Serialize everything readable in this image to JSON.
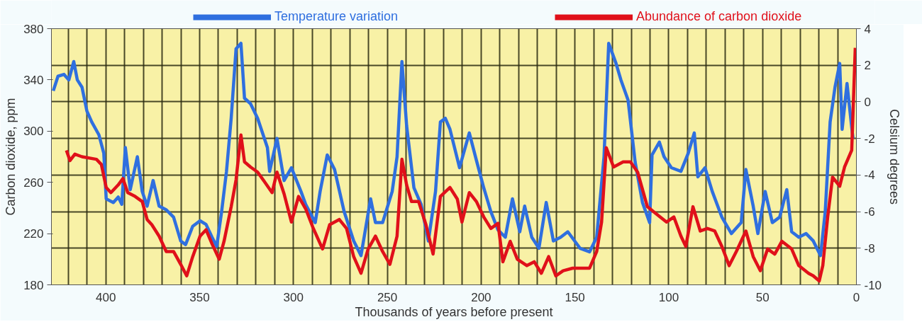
{
  "chart_data": {
    "type": "line",
    "xlabel": "Thousands of years before present",
    "ylabel": "Carbon dioxide, ppm",
    "y2label": "Celsium degrees",
    "xlim": [
      429,
      0
    ],
    "ylim": [
      180,
      380
    ],
    "y2lim": [
      -10,
      4
    ],
    "xticks": [
      {
        "value": 420,
        "label": null
      },
      {
        "value": 410,
        "label": null
      },
      400,
      {
        "value": 390,
        "label": null
      },
      {
        "value": 380,
        "label": null
      },
      {
        "value": 370,
        "label": null
      },
      {
        "value": 360,
        "label": null
      },
      350,
      {
        "value": 340,
        "label": null
      },
      {
        "value": 330,
        "label": null
      },
      {
        "value": 320,
        "label": null
      },
      {
        "value": 310,
        "label": null
      },
      300,
      {
        "value": 290,
        "label": null
      },
      {
        "value": 280,
        "label": null
      },
      {
        "value": 270,
        "label": null
      },
      {
        "value": 260,
        "label": null
      },
      250,
      {
        "value": 240,
        "label": null
      },
      {
        "value": 230,
        "label": null
      },
      {
        "value": 220,
        "label": null
      },
      {
        "value": 210,
        "label": null
      },
      200,
      {
        "value": 190,
        "label": null
      },
      {
        "value": 180,
        "label": null
      },
      {
        "value": 170,
        "label": null
      },
      {
        "value": 160,
        "label": null
      },
      150,
      {
        "value": 140,
        "label": null
      },
      {
        "value": 130,
        "label": null
      },
      {
        "value": 120,
        "label": null
      },
      {
        "value": 110,
        "label": null
      },
      100,
      {
        "value": 90,
        "label": null
      },
      {
        "value": 80,
        "label": null
      },
      {
        "value": 70,
        "label": null
      },
      {
        "value": 60,
        "label": null
      },
      50,
      {
        "value": 40,
        "label": null
      },
      {
        "value": 30,
        "label": null
      },
      {
        "value": 20,
        "label": null
      },
      {
        "value": 10,
        "label": null
      },
      0
    ],
    "yticks": [
      180,
      220,
      260,
      300,
      340,
      380
    ],
    "y2ticks": [
      -10,
      -8,
      -6,
      -4,
      -2,
      0,
      2,
      4
    ],
    "grid": true,
    "legend": "top",
    "marker": "none",
    "line_style": "solid",
    "series": [
      {
        "name": "Temperature variation",
        "color": "#2f6fdf",
        "axis": "y2",
        "x": [
          428.0,
          425.5,
          422.3,
          419.7,
          417.1,
          415.2,
          412.7,
          410.1,
          407.5,
          403.7,
          401.1,
          399.8,
          396.0,
          393.4,
          391.5,
          389.6,
          387.0,
          383.2,
          380.6,
          378.0,
          374.8,
          371.6,
          367.8,
          363.9,
          360.1,
          357.5,
          353.7,
          349.8,
          346.6,
          343.4,
          340.9,
          338.3,
          335.7,
          333.2,
          330.6,
          328.0,
          326.1,
          322.9,
          319.1,
          313.9,
          312.7,
          308.8,
          305.0,
          301.1,
          296.0,
          293.5,
          288.4,
          285.8,
          282.0,
          278.1,
          273.0,
          267.9,
          264.0,
          258.9,
          256.3,
          252.5,
          247.4,
          244.8,
          242.2,
          239.7,
          235.8,
          232.0,
          228.1,
          224.3,
          221.7,
          219.1,
          216.6,
          211.5,
          206.3,
          202.5,
          198.6,
          194.8,
          191.0,
          187.1,
          183.3,
          179.4,
          176.8,
          173.0,
          169.2,
          165.3,
          161.5,
          157.6,
          153.8,
          147.3,
          142.2,
          138.4,
          134.5,
          132.0,
          128.1,
          125.5,
          121.7,
          117.9,
          114.0,
          110.2,
          108.9,
          105.0,
          102.5,
          98.6,
          93.5,
          89.6,
          86.4,
          84.5,
          80.7,
          76.8,
          71.7,
          66.6,
          61.4,
          58.9,
          55.0,
          52.5,
          48.6,
          44.8,
          40.9,
          37.1,
          34.5,
          30.7,
          26.8,
          23.0,
          19.1,
          16.6,
          14.0,
          11.4,
          8.9,
          7.6,
          5.0,
          2.5,
          1.8
        ],
        "values": [
          0.6,
          1.4,
          1.5,
          1.2,
          2.2,
          1.2,
          0.8,
          -0.5,
          -1.1,
          -1.8,
          -2.8,
          -5.3,
          -5.5,
          -5.2,
          -5.6,
          -2.5,
          -4.8,
          -3.0,
          -4.9,
          -5.7,
          -4.3,
          -5.7,
          -5.9,
          -6.3,
          -7.6,
          -7.8,
          -6.8,
          -6.5,
          -6.7,
          -7.4,
          -7.9,
          -6.0,
          -3.8,
          -0.9,
          2.9,
          3.2,
          0.2,
          -0.1,
          -0.9,
          -2.5,
          -3.8,
          -2.0,
          -4.3,
          -3.6,
          -4.9,
          -5.6,
          -6.6,
          -4.9,
          -2.9,
          -3.7,
          -6.0,
          -7.6,
          -8.4,
          -5.3,
          -6.6,
          -6.6,
          -4.9,
          -3.0,
          2.2,
          -1.3,
          -4.7,
          -5.6,
          -7.6,
          -4.9,
          -1.1,
          -0.9,
          -1.5,
          -3.6,
          -1.7,
          -3.2,
          -4.7,
          -6.0,
          -7.0,
          -7.4,
          -5.3,
          -7.1,
          -5.7,
          -7.4,
          -8.0,
          -5.5,
          -7.6,
          -7.4,
          -7.1,
          -8.0,
          -8.2,
          -7.4,
          -3.0,
          3.2,
          2.1,
          1.2,
          0.1,
          -3.3,
          -5.5,
          -6.6,
          -2.9,
          -2.2,
          -3.0,
          -3.6,
          -3.8,
          -2.8,
          -1.7,
          -4.1,
          -3.6,
          -4.9,
          -6.3,
          -7.2,
          -6.6,
          -3.7,
          -5.7,
          -7.2,
          -4.9,
          -6.6,
          -6.3,
          -4.8,
          -7.1,
          -7.4,
          -7.2,
          -7.6,
          -8.4,
          -6.0,
          -1.1,
          0.8,
          2.1,
          -1.5,
          1.0,
          -1.4,
          -2.0
        ]
      },
      {
        "name": "Abundance of carbon dioxide",
        "color": "#e0101a",
        "x": [
          421.0,
          419.1,
          416.5,
          412.7,
          405.0,
          402.4,
          399.8,
          397.3,
          393.4,
          390.9,
          388.3,
          384.4,
          380.6,
          378.0,
          375.5,
          371.6,
          367.8,
          363.9,
          360.1,
          356.9,
          353.7,
          349.8,
          346.6,
          343.4,
          339.6,
          337.0,
          333.2,
          330.6,
          328.0,
          326.1,
          322.9,
          319.1,
          315.2,
          311.4,
          308.8,
          305.0,
          301.1,
          297.3,
          293.4,
          289.7,
          284.5,
          280.7,
          275.6,
          271.7,
          267.9,
          264.0,
          260.2,
          256.3,
          252.5,
          248.6,
          244.8,
          242.2,
          239.7,
          237.1,
          233.3,
          229.4,
          225.6,
          221.7,
          216.6,
          212.7,
          210.2,
          206.3,
          202.5,
          198.6,
          194.8,
          191.0,
          188.4,
          184.5,
          180.7,
          175.6,
          171.7,
          167.9,
          164.0,
          160.2,
          156.3,
          151.2,
          147.3,
          142.2,
          138.4,
          135.8,
          133.3,
          129.4,
          124.3,
          120.4,
          116.6,
          111.4,
          106.3,
          101.2,
          97.3,
          93.5,
          90.9,
          87.1,
          83.2,
          79.4,
          75.5,
          71.7,
          67.8,
          64.0,
          58.9,
          55.0,
          51.2,
          47.3,
          43.5,
          39.7,
          34.5,
          30.7,
          25.5,
          23.0,
          19.8,
          17.9,
          15.3,
          12.7,
          8.9,
          6.3,
          2.5,
          0.6
        ],
        "values": [
          285,
          277,
          282,
          280,
          278,
          274,
          256,
          252,
          258,
          263,
          252,
          249,
          245,
          231,
          227,
          218,
          206,
          206,
          196,
          187,
          202,
          218,
          223,
          212,
          200,
          214,
          241,
          262,
          297,
          276,
          272,
          268,
          260,
          252,
          268,
          251,
          229,
          249,
          239,
          225,
          208,
          227,
          231,
          224,
          202,
          189,
          208,
          218,
          206,
          196,
          218,
          278,
          258,
          245,
          245,
          227,
          204,
          249,
          256,
          247,
          229,
          252,
          245,
          233,
          224,
          228,
          198,
          214,
          200,
          195,
          198,
          189,
          202,
          187,
          191,
          193,
          193,
          193,
          206,
          229,
          287,
          272,
          276,
          276,
          268,
          241,
          235,
          229,
          233,
          218,
          210,
          241,
          222,
          224,
          222,
          210,
          195,
          206,
          222,
          202,
          191,
          208,
          204,
          214,
          208,
          195,
          189,
          187,
          183,
          195,
          233,
          264,
          257,
          272,
          285,
          365
        ]
      }
    ]
  }
}
